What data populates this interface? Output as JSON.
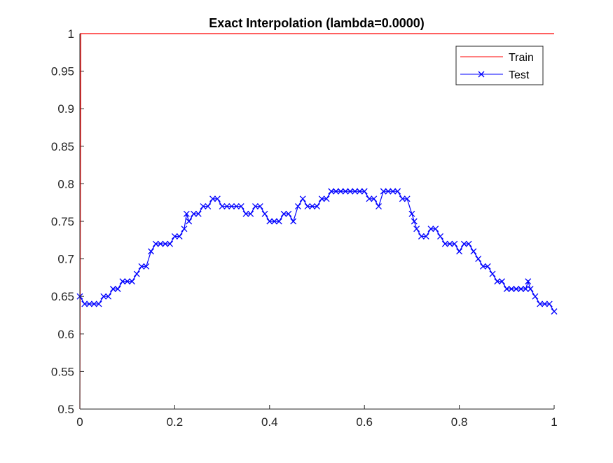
{
  "chart_data": {
    "type": "line",
    "title": "Exact Interpolation (lambda=0.0000)",
    "xlabel": "",
    "ylabel": "",
    "xlim": [
      0,
      1
    ],
    "ylim": [
      0.5,
      1
    ],
    "x_ticks": [
      "0",
      "0.2",
      "0.4",
      "0.6",
      "0.8",
      "1"
    ],
    "y_ticks": [
      "0.5",
      "0.55",
      "0.6",
      "0.65",
      "0.7",
      "0.75",
      "0.8",
      "0.85",
      "0.9",
      "0.95",
      "1"
    ],
    "grid": false,
    "legend_position": "top-right",
    "colors": {
      "train": "#ff0000",
      "test": "#0000ff"
    },
    "series": [
      {
        "name": "Train",
        "color": "#ff0000",
        "marker": "none",
        "x": [
          0,
          0.002,
          1
        ],
        "y": [
          0.5,
          1,
          1
        ]
      },
      {
        "name": "Test",
        "color": "#0000ff",
        "marker": "x",
        "x": [
          0,
          0.01,
          0.02,
          0.03,
          0.04,
          0.05,
          0.06,
          0.07,
          0.08,
          0.09,
          0.1,
          0.11,
          0.12,
          0.13,
          0.14,
          0.15,
          0.16,
          0.17,
          0.18,
          0.19,
          0.2,
          0.21,
          0.22,
          0.225,
          0.23,
          0.24,
          0.25,
          0.26,
          0.27,
          0.28,
          0.29,
          0.3,
          0.31,
          0.32,
          0.33,
          0.34,
          0.35,
          0.36,
          0.37,
          0.38,
          0.39,
          0.4,
          0.41,
          0.42,
          0.43,
          0.44,
          0.45,
          0.46,
          0.47,
          0.48,
          0.49,
          0.5,
          0.51,
          0.52,
          0.53,
          0.54,
          0.55,
          0.56,
          0.57,
          0.58,
          0.59,
          0.6,
          0.61,
          0.62,
          0.63,
          0.64,
          0.65,
          0.66,
          0.67,
          0.68,
          0.69,
          0.7,
          0.705,
          0.71,
          0.72,
          0.73,
          0.74,
          0.75,
          0.76,
          0.77,
          0.78,
          0.79,
          0.8,
          0.81,
          0.82,
          0.83,
          0.84,
          0.85,
          0.86,
          0.87,
          0.88,
          0.89,
          0.9,
          0.91,
          0.92,
          0.93,
          0.94,
          0.945,
          0.95,
          0.96,
          0.97,
          0.98,
          0.99,
          1.0
        ],
        "y": [
          0.65,
          0.64,
          0.64,
          0.64,
          0.64,
          0.65,
          0.65,
          0.66,
          0.66,
          0.67,
          0.67,
          0.67,
          0.68,
          0.69,
          0.69,
          0.71,
          0.72,
          0.72,
          0.72,
          0.72,
          0.73,
          0.73,
          0.74,
          0.76,
          0.75,
          0.76,
          0.76,
          0.77,
          0.77,
          0.78,
          0.78,
          0.77,
          0.77,
          0.77,
          0.77,
          0.77,
          0.76,
          0.76,
          0.77,
          0.77,
          0.76,
          0.75,
          0.75,
          0.75,
          0.76,
          0.76,
          0.75,
          0.77,
          0.78,
          0.77,
          0.77,
          0.77,
          0.78,
          0.78,
          0.79,
          0.79,
          0.79,
          0.79,
          0.79,
          0.79,
          0.79,
          0.79,
          0.78,
          0.78,
          0.77,
          0.79,
          0.79,
          0.79,
          0.79,
          0.78,
          0.78,
          0.76,
          0.75,
          0.74,
          0.73,
          0.73,
          0.74,
          0.74,
          0.73,
          0.72,
          0.72,
          0.72,
          0.71,
          0.72,
          0.72,
          0.71,
          0.7,
          0.69,
          0.69,
          0.68,
          0.67,
          0.67,
          0.66,
          0.66,
          0.66,
          0.66,
          0.66,
          0.67,
          0.66,
          0.65,
          0.64,
          0.64,
          0.64,
          0.63
        ]
      }
    ]
  }
}
